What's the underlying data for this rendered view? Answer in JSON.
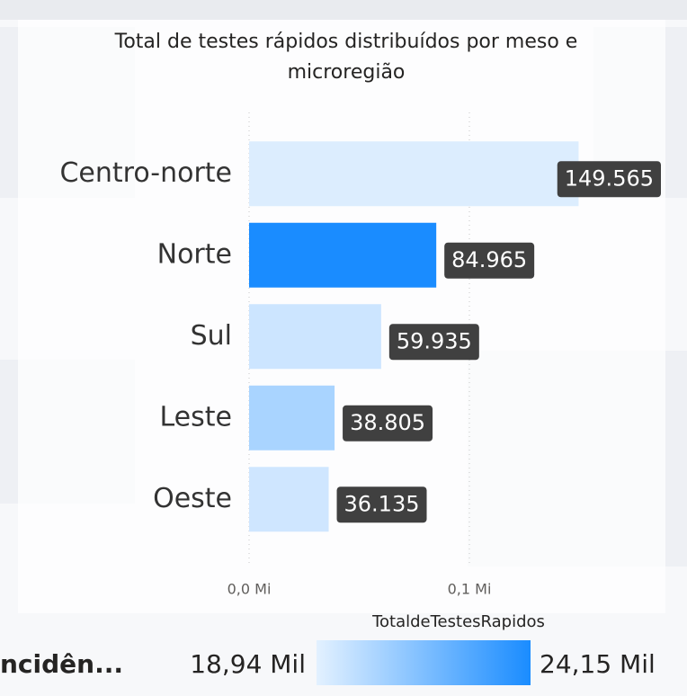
{
  "chart_data": {
    "type": "hbar",
    "title": [
      "Total de testes rápidos distribuídos por meso e",
      "microregião"
    ],
    "categories": [
      "Centro-norte",
      "Norte",
      "Sul",
      "Leste",
      "Oeste"
    ],
    "values": [
      149565,
      84965,
      59935,
      38805,
      36135
    ],
    "value_labels": [
      "149.565",
      "84.965",
      "59.935",
      "38.805",
      "36.135"
    ],
    "colors": [
      "#dcedfe",
      "#1a8cff",
      "#cce5ff",
      "#a9d4ff",
      "#cfe6ff"
    ],
    "xlim": [
      0,
      150000
    ],
    "xticks": [
      {
        "value": 0,
        "label": "0,0 Mi"
      },
      {
        "value": 100000,
        "label": "0,1 Mi"
      }
    ],
    "grid": true,
    "legend": {
      "field": "ncidên...",
      "title": "TotaldeTestesRapidos",
      "min_label": "18,94 Mil",
      "max_label": "24,15 Mil",
      "min_color": "#e3f1ff",
      "max_color": "#1a8cff"
    }
  }
}
